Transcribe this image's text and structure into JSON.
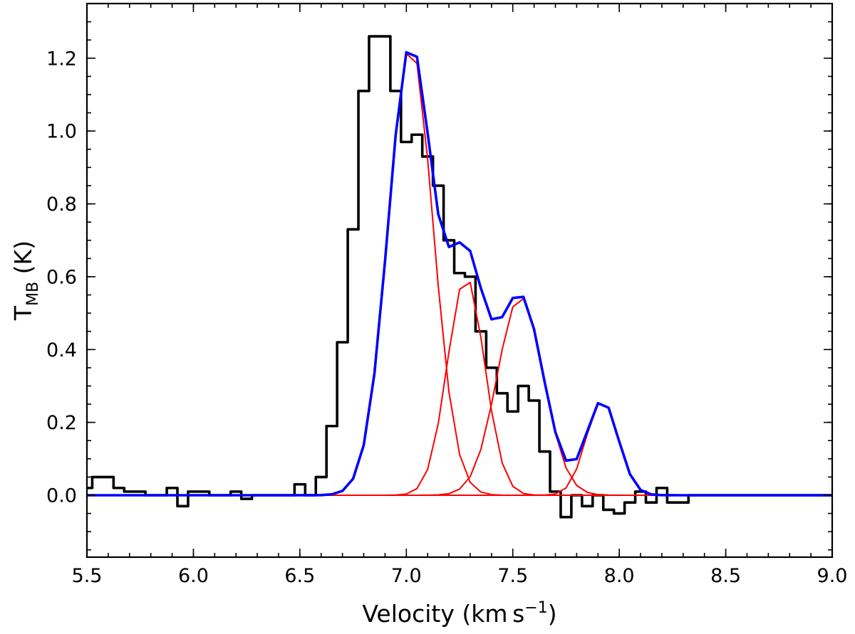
{
  "chart_data": {
    "type": "line",
    "xlabel": "Velocity (km s⁻¹)",
    "ylabel": "T_MB (K)",
    "xlim": [
      5.5,
      9.0
    ],
    "ylim": [
      -0.17,
      1.35
    ],
    "xticks": [
      "5.5",
      "6.0",
      "6.5",
      "7.0",
      "7.5",
      "8.0",
      "8.5",
      "9.0"
    ],
    "yticks": [
      "0.0",
      "0.2",
      "0.4",
      "0.6",
      "0.8",
      "1.0",
      "1.2"
    ],
    "grid": false,
    "colors": {
      "observed": "#000000",
      "components": "#ff0000",
      "total_fit": "#0000ff"
    },
    "series": [
      {
        "style": "steps",
        "x": [
          5.5,
          5.55,
          5.6,
          5.65,
          5.7,
          5.75,
          5.8,
          5.85,
          5.9,
          5.95,
          6.0,
          6.05,
          6.1,
          6.15,
          6.2,
          6.25,
          6.3,
          6.35,
          6.4,
          6.45,
          6.5,
          6.55,
          6.6,
          6.65,
          6.7,
          6.75,
          6.8,
          6.85,
          6.9,
          6.95,
          7.0,
          7.05,
          7.1,
          7.15,
          7.2,
          7.25,
          7.3,
          7.35,
          7.4,
          7.45,
          7.5,
          7.55,
          7.6,
          7.65,
          7.7,
          7.75,
          7.8,
          7.85,
          7.9,
          7.95,
          8.0,
          8.05,
          8.1,
          8.15,
          8.2,
          8.25,
          8.3,
          8.35,
          8.4,
          8.45,
          8.5,
          8.55,
          8.6,
          8.65,
          8.7,
          8.75,
          8.8,
          8.85,
          8.9,
          8.95,
          9.0
        ],
        "y": [
          0.02,
          0.05,
          0.05,
          0.02,
          0.01,
          0.01,
          0.0,
          0.0,
          0.02,
          -0.03,
          0.01,
          0.01,
          0.0,
          0.0,
          0.01,
          -0.01,
          0.0,
          0.0,
          0.0,
          0.0,
          0.03,
          0.0,
          0.05,
          0.19,
          0.42,
          0.73,
          1.11,
          1.26,
          1.26,
          1.11,
          0.97,
          0.99,
          0.93,
          0.85,
          0.7,
          0.61,
          0.6,
          0.45,
          0.35,
          0.28,
          0.23,
          0.3,
          0.26,
          0.12,
          0.01,
          -0.06,
          0.0,
          -0.03,
          0.0,
          -0.04,
          -0.05,
          -0.02,
          0.01,
          -0.02,
          0.02,
          -0.02,
          -0.02,
          0.0,
          0.0,
          0.0,
          0.0,
          0.0,
          0.0,
          0.0,
          0.0,
          0.0,
          0.0,
          0.0,
          0.0,
          0.0,
          0.0
        ]
      },
      {
        "style": "gaussian",
        "amplitude": 1.235,
        "center": 7.02,
        "sigma": 0.105,
        "range": [
          5.5,
          9.0
        ]
      },
      {
        "style": "gaussian",
        "amplitude": 0.6,
        "center": 7.28,
        "sigma": 0.087,
        "range": [
          5.5,
          9.0
        ]
      },
      {
        "style": "gaussian",
        "amplitude": 0.545,
        "center": 7.535,
        "sigma": 0.108,
        "range": [
          5.5,
          9.0
        ]
      },
      {
        "style": "gaussian",
        "amplitude": 0.26,
        "center": 7.92,
        "sigma": 0.075,
        "range": [
          5.5,
          9.0
        ]
      },
      {
        "style": "sum-of-components",
        "range": [
          5.5,
          9.0
        ]
      }
    ]
  }
}
